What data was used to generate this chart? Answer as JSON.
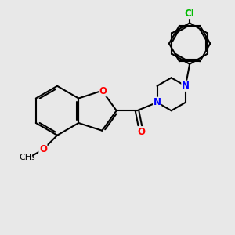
{
  "background_color": "#e8e8e8",
  "bond_color": "#000000",
  "N_color": "#0000ff",
  "O_color": "#ff0000",
  "Cl_color": "#00bb00",
  "line_width": 1.5,
  "font_size": 8.5,
  "fig_w": 3.0,
  "fig_h": 3.0,
  "dpi": 100,
  "xlim": [
    0.5,
    8.5
  ],
  "ylim": [
    0.5,
    9.0
  ]
}
